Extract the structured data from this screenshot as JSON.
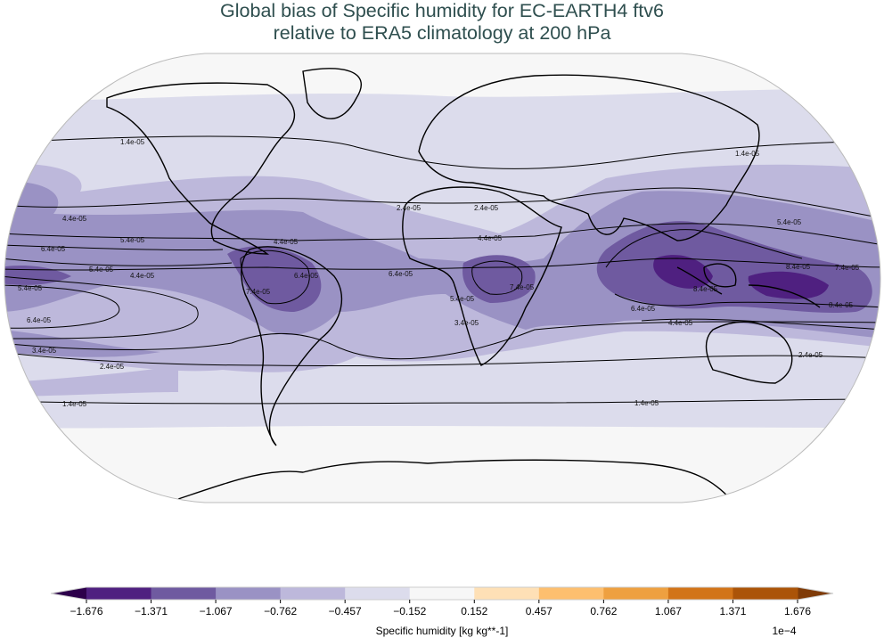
{
  "title_line1": "Global bias of Specific humidity for EC-EARTH4 ftv6",
  "title_line2": "relative to ERA5 climatology at 200 hPa",
  "map": {
    "projection": "robinson",
    "coastlines": true,
    "colormap": "PuOr",
    "contour_labels": [
      "1.4e-05",
      "1.4e-05",
      "1.4e-05",
      "1.4e-05",
      "2.4e-05",
      "2.4e-05",
      "2.4e-05",
      "2.4e-05",
      "3.4e-05",
      "3.4e-05",
      "4.4e-05",
      "4.4e-05",
      "4.4e-05",
      "4.4e-05",
      "4.4e-05",
      "5.4e-05",
      "5.4e-05",
      "5.4e-05",
      "5.4e-05",
      "5.4e-05",
      "6.4e-05",
      "6.4e-05",
      "6.4e-05",
      "6.4e-05",
      "6.4e-05",
      "7.4e-05",
      "7.4e-05",
      "7.4e-05",
      "8.4e-05",
      "8.4e-05",
      "8.4e-05"
    ]
  },
  "colorbar": {
    "label": "Specific humidity [kg kg**-1]",
    "scale_label": "1e−4",
    "ticks": [
      "−1.676",
      "−1.371",
      "−1.067",
      "−0.762",
      "−0.457",
      "−0.152",
      "0.152",
      "0.457",
      "0.762",
      "1.067",
      "1.371",
      "1.676"
    ],
    "colors": [
      "#4f2080",
      "#6f5aa0",
      "#9a92c4",
      "#bdb8db",
      "#dcdcec",
      "#f7f7f7",
      "#fee0b6",
      "#fdbf6f",
      "#eea040",
      "#d27418",
      "#ab5408"
    ],
    "under_color": "#2d004b",
    "over_color": "#7f3b08",
    "extend": "both"
  }
}
